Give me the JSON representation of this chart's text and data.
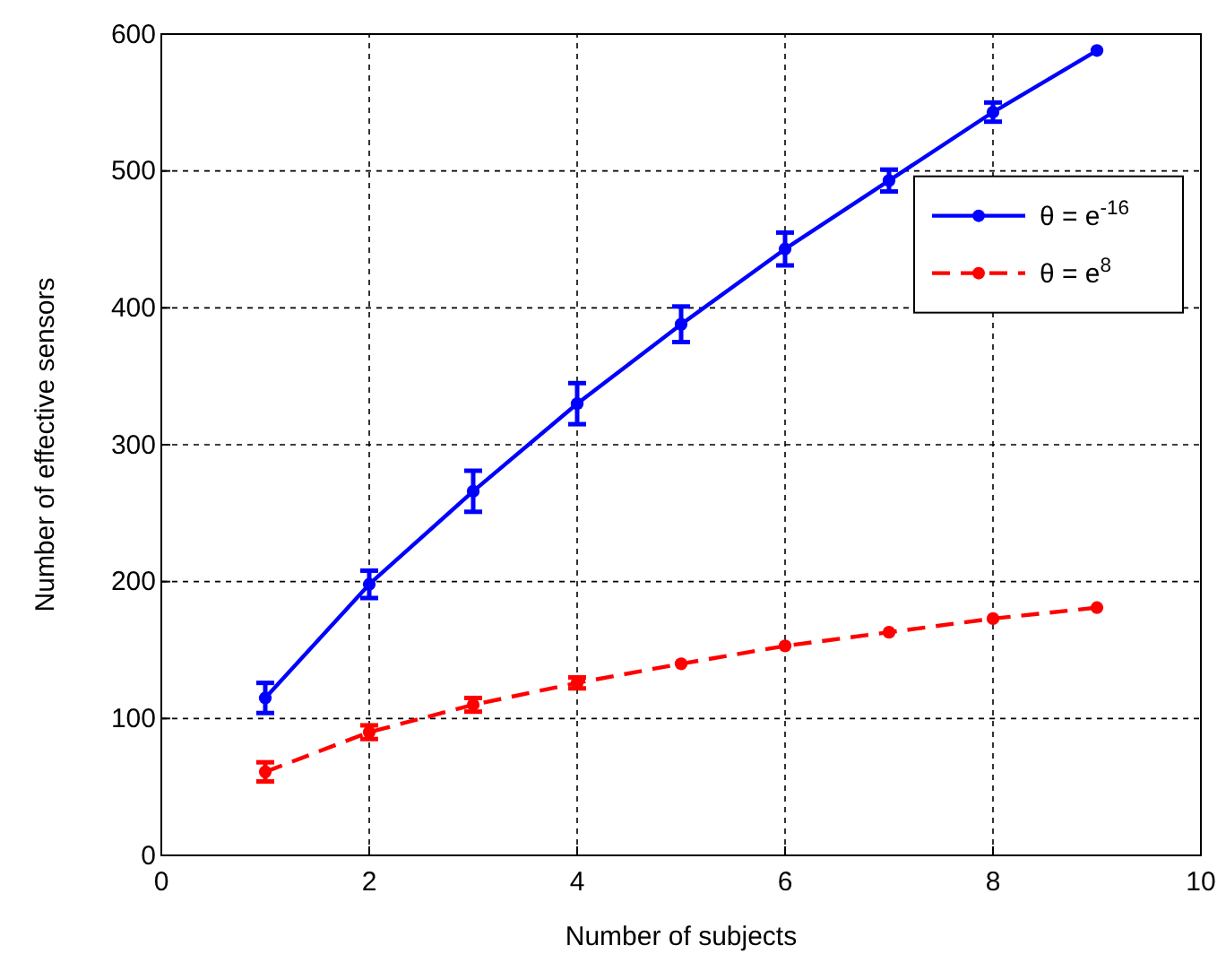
{
  "chart_data": {
    "type": "line",
    "xlabel": "Number of subjects",
    "ylabel": "Number of effective sensors",
    "x": [
      1,
      2,
      3,
      4,
      5,
      6,
      7,
      8,
      9
    ],
    "xlim": [
      0,
      10
    ],
    "xticks": [
      0,
      2,
      4,
      6,
      8,
      10
    ],
    "ylim": [
      0,
      600
    ],
    "yticks": [
      0,
      100,
      200,
      300,
      400,
      500,
      600
    ],
    "grid": true,
    "legend": "top right",
    "marker": "circle",
    "series": [
      {
        "name": "θ = e$^{-16}$",
        "color": "#0000ff",
        "line_style": "solid",
        "values": [
          115,
          198,
          266,
          330,
          388,
          443,
          493,
          543,
          588
        ],
        "errors": [
          11,
          10,
          15,
          15,
          13,
          12,
          8,
          7,
          null
        ]
      },
      {
        "name": "θ = e$^{8}$",
        "color": "#ff0000",
        "line_style": "dashed",
        "values": [
          61,
          90,
          110,
          126,
          140,
          153,
          163,
          173,
          181
        ],
        "errors": [
          7,
          5,
          5,
          4,
          null,
          null,
          null,
          null,
          null
        ]
      }
    ]
  }
}
